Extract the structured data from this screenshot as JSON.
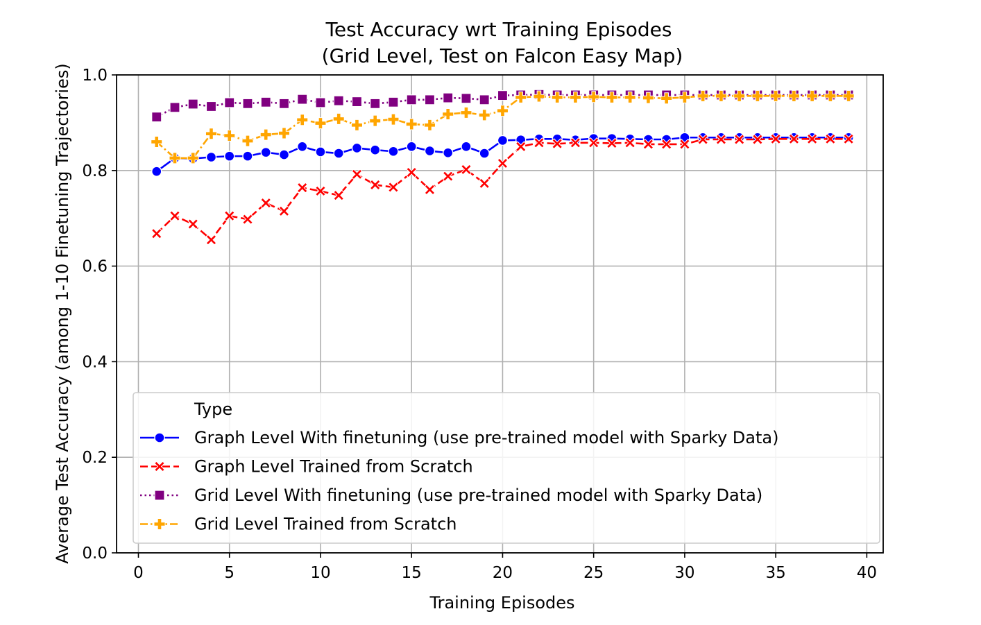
{
  "chart_data": {
    "type": "line",
    "title": "Test Accuracy wrt Training Episodes",
    "subtitle": "(Grid Level, Test on Falcon Easy Map)",
    "xlabel": "Training Episodes",
    "ylabel": "Average Test Accuracy (among 1-10 Finetuning Trajectories)",
    "xlim": [
      -1.2,
      40.9
    ],
    "ylim": [
      0.0,
      1.0
    ],
    "xticks": [
      0,
      5,
      10,
      15,
      20,
      25,
      30,
      35,
      40
    ],
    "yticks": [
      0.0,
      0.2,
      0.4,
      0.6,
      0.8,
      1.0
    ],
    "xtick_labels": [
      "0",
      "5",
      "10",
      "15",
      "20",
      "25",
      "30",
      "35",
      "40"
    ],
    "ytick_labels": [
      "0.0",
      "0.2",
      "0.4",
      "0.6",
      "0.8",
      "1.0"
    ],
    "grid": true,
    "legend": {
      "title": "Type",
      "placement": "lower-right"
    },
    "x": [
      1,
      2,
      3,
      4,
      5,
      6,
      7,
      8,
      9,
      10,
      11,
      12,
      13,
      14,
      15,
      16,
      17,
      18,
      19,
      20,
      21,
      22,
      23,
      24,
      25,
      26,
      27,
      28,
      29,
      30,
      31,
      32,
      33,
      34,
      35,
      36,
      37,
      38,
      39
    ],
    "series": [
      {
        "name": "Graph Level With finetuning (use pre-trained model with Sparky Data)",
        "color": "#0000ff",
        "linestyle": "solid",
        "marker": "circle",
        "values": [
          0.798,
          0.826,
          0.825,
          0.828,
          0.83,
          0.83,
          0.838,
          0.833,
          0.85,
          0.839,
          0.836,
          0.847,
          0.843,
          0.84,
          0.85,
          0.841,
          0.837,
          0.85,
          0.836,
          0.863,
          0.864,
          0.866,
          0.866,
          0.864,
          0.867,
          0.867,
          0.866,
          0.865,
          0.865,
          0.869,
          0.869,
          0.869,
          0.869,
          0.869,
          0.869,
          0.869,
          0.869,
          0.869,
          0.869
        ]
      },
      {
        "name": "Graph Level Trained from Scratch",
        "color": "#ff0000",
        "linestyle": "dashed",
        "marker": "x",
        "values": [
          0.668,
          0.705,
          0.688,
          0.655,
          0.705,
          0.698,
          0.732,
          0.715,
          0.764,
          0.757,
          0.748,
          0.792,
          0.77,
          0.765,
          0.796,
          0.76,
          0.788,
          0.802,
          0.773,
          0.815,
          0.85,
          0.858,
          0.856,
          0.858,
          0.858,
          0.857,
          0.858,
          0.855,
          0.855,
          0.855,
          0.865,
          0.865,
          0.865,
          0.865,
          0.866,
          0.866,
          0.866,
          0.866,
          0.866
        ]
      },
      {
        "name": "Grid Level With finetuning (use pre-trained model with Sparky Data)",
        "color": "#800080",
        "linestyle": "dotted",
        "marker": "square",
        "values": [
          0.912,
          0.932,
          0.939,
          0.934,
          0.942,
          0.94,
          0.943,
          0.94,
          0.949,
          0.942,
          0.946,
          0.944,
          0.94,
          0.943,
          0.948,
          0.948,
          0.952,
          0.951,
          0.948,
          0.957,
          0.958,
          0.959,
          0.958,
          0.958,
          0.958,
          0.958,
          0.958,
          0.958,
          0.958,
          0.958,
          0.958,
          0.958,
          0.958,
          0.958,
          0.958,
          0.958,
          0.958,
          0.958,
          0.958
        ]
      },
      {
        "name": "Grid Level Trained from Scratch",
        "color": "#ffa500",
        "linestyle": "dashdot",
        "marker": "plus",
        "values": [
          0.86,
          0.826,
          0.826,
          0.877,
          0.873,
          0.862,
          0.875,
          0.878,
          0.906,
          0.899,
          0.908,
          0.895,
          0.904,
          0.907,
          0.897,
          0.895,
          0.918,
          0.921,
          0.916,
          0.925,
          0.953,
          0.955,
          0.953,
          0.953,
          0.954,
          0.953,
          0.953,
          0.952,
          0.951,
          0.953,
          0.956,
          0.956,
          0.956,
          0.956,
          0.956,
          0.956,
          0.956,
          0.956,
          0.956
        ]
      }
    ]
  }
}
